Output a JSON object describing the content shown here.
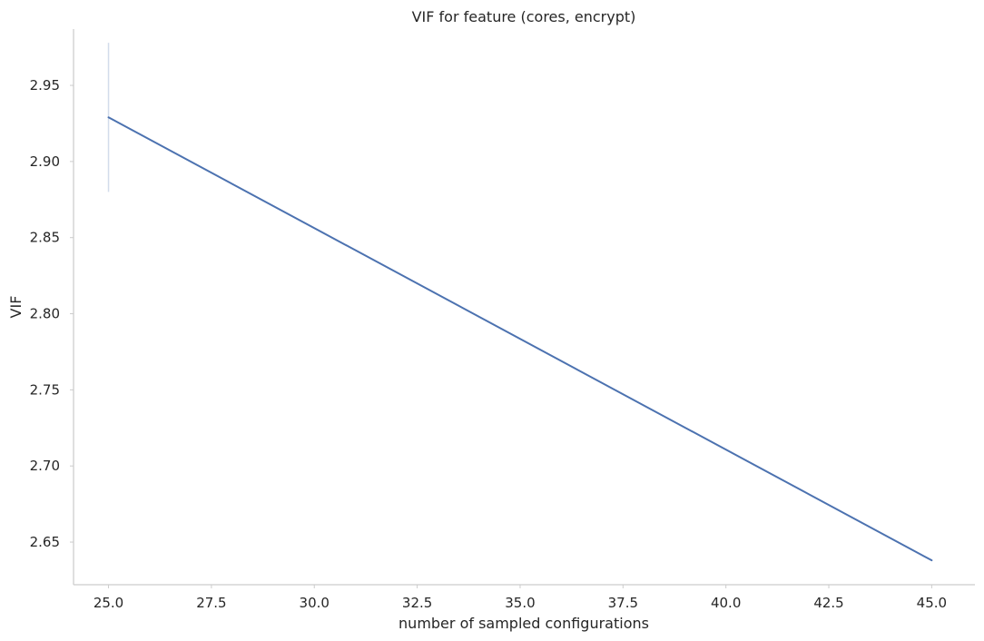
{
  "chart_data": {
    "type": "line",
    "title": "VIF for feature (cores, encrypt)",
    "xlabel": "number of sampled configurations",
    "ylabel": "VIF",
    "xlim": [
      24.15,
      46.05
    ],
    "ylim": [
      2.622,
      2.987
    ],
    "xticks": [
      25.0,
      27.5,
      30.0,
      32.5,
      35.0,
      37.5,
      40.0,
      42.5,
      45.0
    ],
    "xtick_labels": [
      "25.0",
      "27.5",
      "30.0",
      "32.5",
      "35.0",
      "37.5",
      "40.0",
      "42.5",
      "45.0"
    ],
    "yticks": [
      2.65,
      2.7,
      2.75,
      2.8,
      2.85,
      2.9,
      2.95
    ],
    "ytick_labels": [
      "2.65",
      "2.70",
      "2.75",
      "2.80",
      "2.85",
      "2.90",
      "2.95"
    ],
    "grid": false,
    "series": [
      {
        "color": "#4c72b0",
        "x": [
          25.0,
          45.0
        ],
        "y": [
          2.929,
          2.638
        ],
        "error_band": {
          "x": 25.0,
          "low": 2.88,
          "high": 2.978
        }
      }
    ]
  }
}
